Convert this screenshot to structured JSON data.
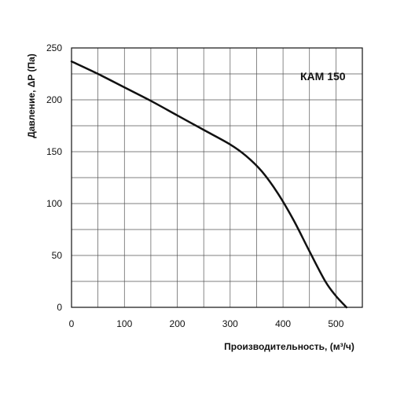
{
  "chart_data": {
    "type": "line",
    "title": "",
    "annotation": "КАМ 150",
    "xlabel": "Производительность, (м³/ч)",
    "ylabel": "Давление, ΔP (Па)",
    "xlim": [
      0,
      550
    ],
    "ylim": [
      0,
      250
    ],
    "x_ticks": [
      0,
      100,
      200,
      300,
      400,
      500
    ],
    "y_ticks": [
      0,
      50,
      100,
      150,
      200,
      250
    ],
    "x_minor_step": 50,
    "y_minor_step": 25,
    "grid": true,
    "series": [
      {
        "color": "#111111",
        "x": [
          0,
          50,
          100,
          150,
          200,
          250,
          300,
          330,
          360,
          390,
          420,
          450,
          480,
          500,
          520
        ],
        "y": [
          237,
          225,
          212,
          199,
          185,
          171,
          157,
          146,
          131,
          110,
          84,
          54,
          25,
          11,
          0
        ]
      }
    ]
  }
}
